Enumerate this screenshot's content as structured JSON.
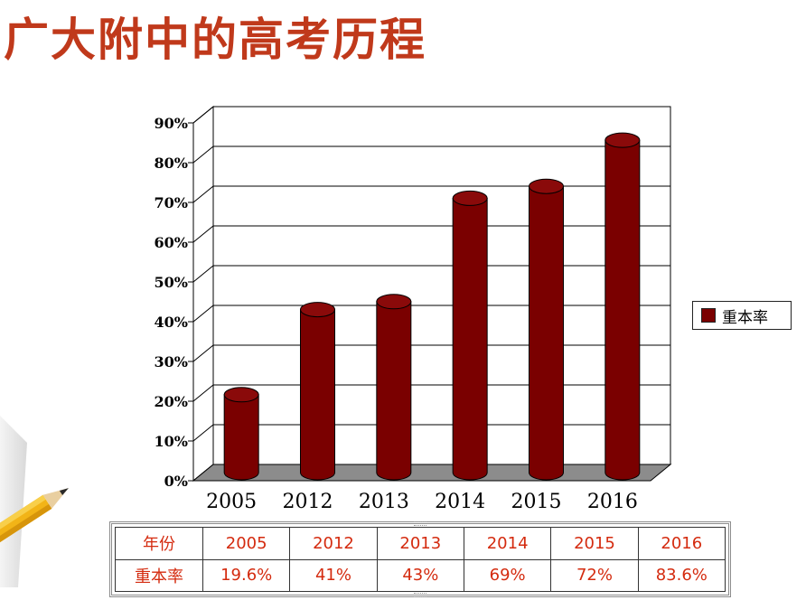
{
  "page": {
    "title": "广大附中的高考历程"
  },
  "chart_data": {
    "type": "bar",
    "style": "3d-cylinder",
    "categories": [
      "2005",
      "2012",
      "2013",
      "2014",
      "2015",
      "2016"
    ],
    "series": [
      {
        "name": "重本率",
        "values": [
          19.6,
          41,
          43,
          69,
          72,
          83.6
        ],
        "color": "#7a0000"
      }
    ],
    "ylim": [
      0,
      90
    ],
    "yticks": [
      "0%",
      "10%",
      "20%",
      "30%",
      "40%",
      "50%",
      "60%",
      "70%",
      "80%",
      "90%"
    ],
    "grid": true,
    "legend": "right",
    "floor_color": "#8c8c8c"
  },
  "table": {
    "header_label": "年份",
    "row_label": "重本率",
    "years": [
      "2005",
      "2012",
      "2013",
      "2014",
      "2015",
      "2016"
    ],
    "rates": [
      "19.6%",
      "41%",
      "43%",
      "69%",
      "72%",
      "83.6%"
    ]
  },
  "decor": {
    "pencil": "pencil-illustration"
  }
}
